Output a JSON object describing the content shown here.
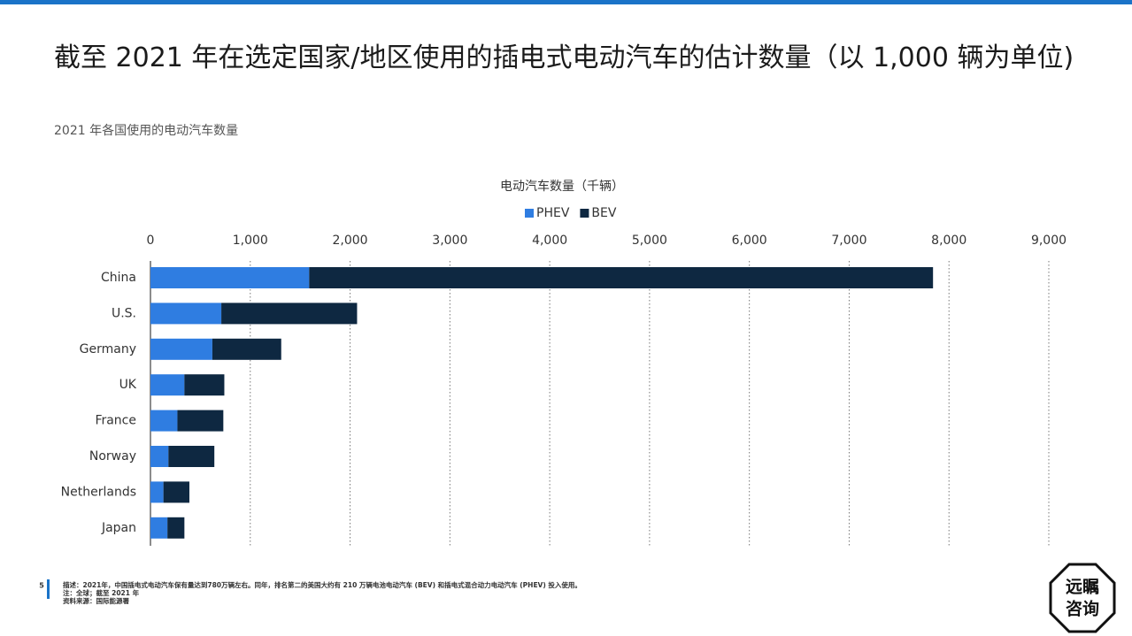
{
  "chart_data": {
    "type": "stacked-barh",
    "title": "截至 2021 年在选定国家/地区使用的插电式电动汽车的估计数量（以 1,000 辆为单位)",
    "subtitle": "2021 年各国使用的电动汽车数量",
    "x_label": "电动汽车数量（千辆）",
    "categories": [
      "China",
      "U.S.",
      "Germany",
      "UK",
      "France",
      "Norway",
      "Netherlands",
      "Japan"
    ],
    "series": [
      {
        "name": "PHEV",
        "color": "#2f7de1",
        "values": [
          1590,
          710,
          620,
          340,
          270,
          180,
          130,
          170
        ]
      },
      {
        "name": "BEV",
        "color": "#0e2841",
        "values": [
          6250,
          1360,
          690,
          400,
          460,
          460,
          260,
          170
        ]
      }
    ],
    "xlim": [
      0,
      9000
    ],
    "xticks": [
      0,
      {
        "value": 1000,
        "label": "1,000"
      },
      {
        "value": 2000,
        "label": "2,000"
      },
      {
        "value": 3000,
        "label": "3,000"
      },
      {
        "value": 4000,
        "label": "4,000"
      },
      {
        "value": 5000,
        "label": "5,000"
      },
      {
        "value": 6000,
        "label": "6,000"
      },
      {
        "value": 7000,
        "label": "7,000"
      },
      {
        "value": 8000,
        "label": "8,000"
      },
      {
        "value": 9000,
        "label": "9,000"
      }
    ],
    "grid": true,
    "legend": "top",
    "page_number": "5",
    "notes": [
      "描述：2021年，中国插电式电动汽车保有量达到780万辆左右。同年，排名第二的美国大约有 210 万辆电池电动汽车 (BEV) 和插电式混合动力电动汽车 (PHEV) 投入使用。",
      "注：全球；截至 2021 年",
      "资料来源：国际能源署"
    ],
    "logo": [
      "远瞩",
      "咨询"
    ]
  }
}
